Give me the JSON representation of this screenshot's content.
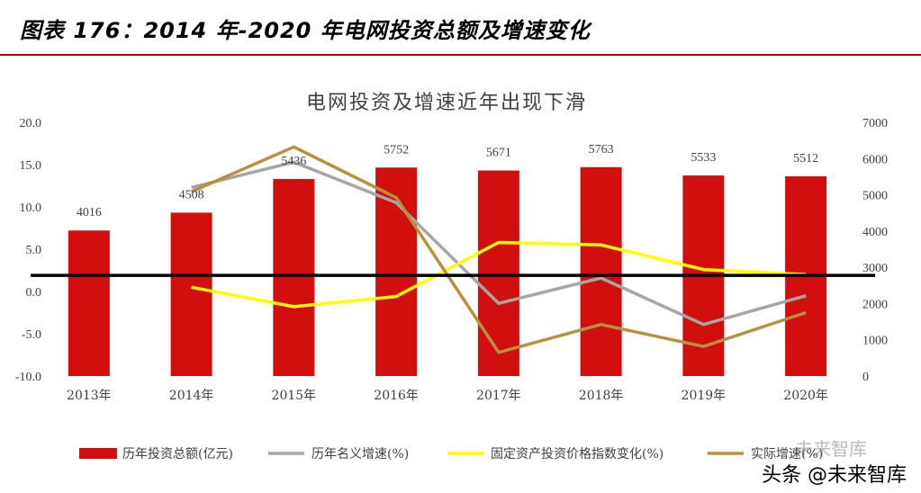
{
  "figure_title": "图表 176：2014 年-2020 年电网投资总额及增速变化",
  "colors": {
    "bar": "#d10f0f",
    "nominal": "#a6a6a6",
    "price_index": "#ffff00",
    "real": "#b8913f",
    "reference_line": "#000000",
    "header_rule": "#c00000"
  },
  "chart_data": {
    "type": "bar+line",
    "title": "电网投资及增速近年出现下滑",
    "categories": [
      "2013年",
      "2014年",
      "2015年",
      "2016年",
      "2017年",
      "2018年",
      "2019年",
      "2020年"
    ],
    "left_axis": {
      "range": [
        -10,
        20
      ],
      "ticks": [
        "-10.0",
        "-5.0",
        "0.0",
        "5.0",
        "10.0",
        "15.0",
        "20.0"
      ]
    },
    "right_axis": {
      "range": [
        0,
        7000
      ],
      "ticks": [
        "0",
        "1000",
        "2000",
        "3000",
        "4000",
        "5000",
        "6000",
        "7000"
      ]
    },
    "reference_line": {
      "axis": "left",
      "value": 1.9
    },
    "series": [
      {
        "name": "历年投资总额(亿元)",
        "type": "bar",
        "axis": "right",
        "values": [
          4016,
          4508,
          5436,
          5752,
          5671,
          5763,
          5533,
          5512
        ],
        "labels": [
          "4016",
          "4508",
          "5436",
          "5752",
          "5671",
          "5763",
          "5533",
          "5512"
        ]
      },
      {
        "name": "历年名义增速(%)",
        "type": "line",
        "axis": "left",
        "values": [
          null,
          12.3,
          15.3,
          10.5,
          -1.4,
          1.6,
          -3.9,
          -0.5
        ]
      },
      {
        "name": "固定资产投资价格指数变化(%)",
        "type": "line",
        "axis": "left",
        "values": [
          null,
          0.5,
          -1.8,
          -0.6,
          5.8,
          5.5,
          2.6,
          2.0
        ]
      },
      {
        "name": "实际增速(%)",
        "type": "line",
        "axis": "left",
        "values": [
          null,
          11.8,
          17.1,
          11.1,
          -7.2,
          -3.9,
          -6.5,
          -2.5
        ]
      }
    ]
  },
  "watermark": "头条 @未来智库",
  "watermark_faint": "未来智库"
}
